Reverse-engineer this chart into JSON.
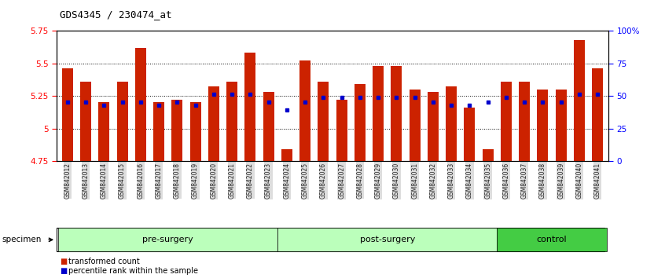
{
  "title": "GDS4345 / 230474_at",
  "samples": [
    "GSM842012",
    "GSM842013",
    "GSM842014",
    "GSM842015",
    "GSM842016",
    "GSM842017",
    "GSM842018",
    "GSM842019",
    "GSM842020",
    "GSM842021",
    "GSM842022",
    "GSM842023",
    "GSM842024",
    "GSM842025",
    "GSM842026",
    "GSM842027",
    "GSM842028",
    "GSM842029",
    "GSM842030",
    "GSM842031",
    "GSM842032",
    "GSM842033",
    "GSM842034",
    "GSM842035",
    "GSM842036",
    "GSM842037",
    "GSM842038",
    "GSM842039",
    "GSM842040",
    "GSM842041"
  ],
  "red_values": [
    5.46,
    5.36,
    5.2,
    5.36,
    5.62,
    5.2,
    5.22,
    5.2,
    5.32,
    5.36,
    5.58,
    5.28,
    4.84,
    5.52,
    5.36,
    5.22,
    5.34,
    5.48,
    5.48,
    5.3,
    5.28,
    5.32,
    5.16,
    4.84,
    5.36,
    5.36,
    5.3,
    5.3,
    5.68,
    5.46
  ],
  "blue_values": [
    5.2,
    5.2,
    5.18,
    5.2,
    5.2,
    5.18,
    5.2,
    5.18,
    5.26,
    5.26,
    5.26,
    5.2,
    5.14,
    5.2,
    5.24,
    5.24,
    5.24,
    5.24,
    5.24,
    5.24,
    5.2,
    5.18,
    5.18,
    5.2,
    5.24,
    5.2,
    5.2,
    5.2,
    5.26,
    5.26
  ],
  "groups": [
    {
      "label": "pre-surgery",
      "start": 0,
      "end": 12
    },
    {
      "label": "post-surgery",
      "start": 12,
      "end": 24
    },
    {
      "label": "control",
      "start": 24,
      "end": 30
    }
  ],
  "group_colors": [
    "#BBFFBB",
    "#BBFFBB",
    "#44CC44"
  ],
  "ymin": 4.75,
  "ymax": 5.75,
  "yticks": [
    4.75,
    5.0,
    5.25,
    5.5,
    5.75
  ],
  "ytick_labels": [
    "4.75",
    "5",
    "5.25",
    "5.5",
    "5.75"
  ],
  "right_yticks_pct": [
    0,
    25,
    50,
    75,
    100
  ],
  "right_ytick_labels": [
    "0",
    "25",
    "50",
    "75",
    "100%"
  ],
  "bar_color": "#CC2200",
  "dot_color": "#0000CC",
  "legend_items": [
    {
      "label": "transformed count",
      "color": "#CC2200"
    },
    {
      "label": "percentile rank within the sample",
      "color": "#0000CC"
    }
  ]
}
